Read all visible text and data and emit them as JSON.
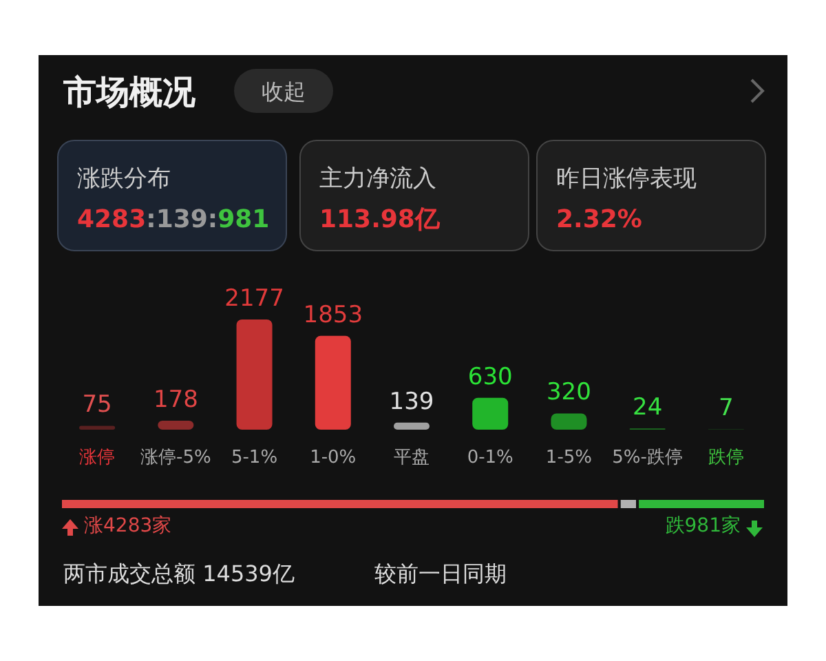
{
  "chart_data": [
    {
      "type": "other",
      "title": "市场概况",
      "annotations": [
        "收起",
        "涨跌分布",
        "4283:139:981",
        "主力净流入",
        "113.98亿",
        "昨日涨停表现",
        "2.32%"
      ]
    },
    {
      "type": "bar",
      "categories": [
        "涨停",
        "涨停-5%",
        "5-1%",
        "1-0%",
        "平盘",
        "0-1%",
        "1-5%",
        "5%-跌停",
        "跌停"
      ],
      "values": [
        75,
        178,
        2177,
        1853,
        139,
        630,
        320,
        24,
        7
      ],
      "colors": [
        "#5a2020",
        "#8c2b2b",
        "#c23232",
        "#e23c3c",
        "#a0a0a0",
        "#22b52b",
        "#1f8f25",
        "#1b6e20",
        "#184f1b"
      ],
      "data_labels": true
    },
    {
      "type": "bar",
      "orientation": "horizontal",
      "stacked": true,
      "categories": [
        null
      ],
      "series": [
        {
          "color": "#e04848",
          "values": [
            4283
          ],
          "value_labels": [
            "涨4283家"
          ]
        },
        {
          "color": "#b0b0b0",
          "values": [
            139
          ]
        },
        {
          "color": "#2fb83a",
          "values": [
            981
          ],
          "value_labels": [
            "跌981家"
          ]
        }
      ],
      "annotations": [
        "两市成交总额  14539亿",
        "较前一日同期"
      ]
    }
  ]
}
